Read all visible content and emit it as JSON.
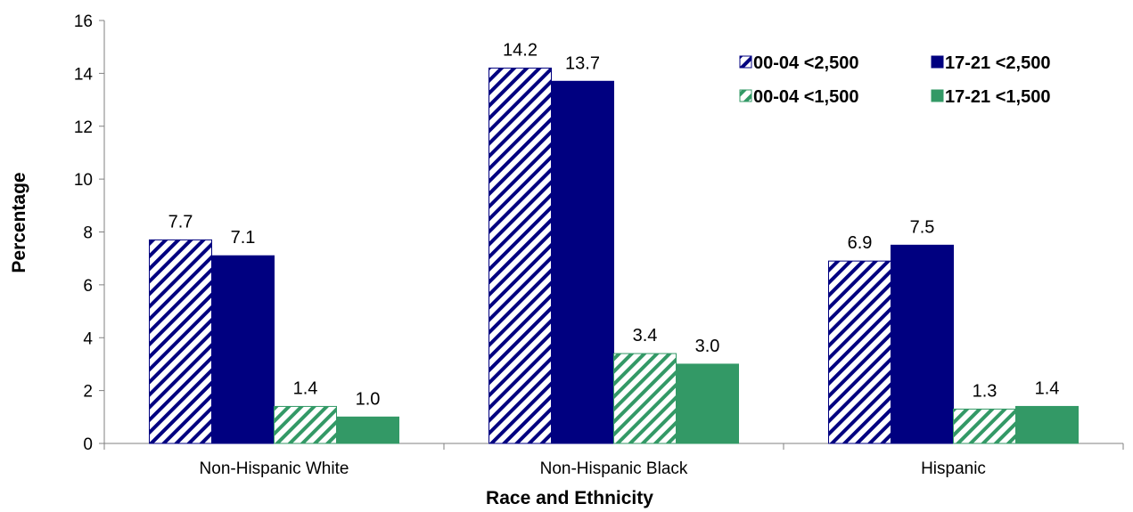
{
  "chart_data": {
    "type": "bar",
    "title": "",
    "xlabel": "Race and Ethnicity",
    "ylabel": "Percentage",
    "ylim": [
      0,
      16
    ],
    "yticks": [
      0,
      2,
      4,
      6,
      8,
      10,
      12,
      14,
      16
    ],
    "categories": [
      "Non-Hispanic White",
      "Non-Hispanic Black",
      "Hispanic"
    ],
    "series": [
      {
        "name": "00-04 <2,500",
        "values": [
          7.7,
          14.2,
          6.9
        ],
        "labels": [
          "7.7",
          "14.2",
          "6.9"
        ],
        "color": "#000080",
        "pattern": "hatched"
      },
      {
        "name": "17-21 <2,500",
        "values": [
          7.1,
          13.7,
          7.5
        ],
        "labels": [
          "7.1",
          "13.7",
          "7.5"
        ],
        "color": "#000080",
        "pattern": "solid"
      },
      {
        "name": "00-04 <1,500",
        "values": [
          1.4,
          3.4,
          1.3
        ],
        "labels": [
          "1.4",
          "3.4",
          "1.3"
        ],
        "color": "#339966",
        "pattern": "hatched"
      },
      {
        "name": "17-21 <1,500",
        "values": [
          1.0,
          3.0,
          1.4
        ],
        "labels": [
          "1.0",
          "3.0",
          "1.4"
        ],
        "color": "#339966",
        "pattern": "solid"
      }
    ],
    "legend_position": "top-right",
    "grid": false
  }
}
